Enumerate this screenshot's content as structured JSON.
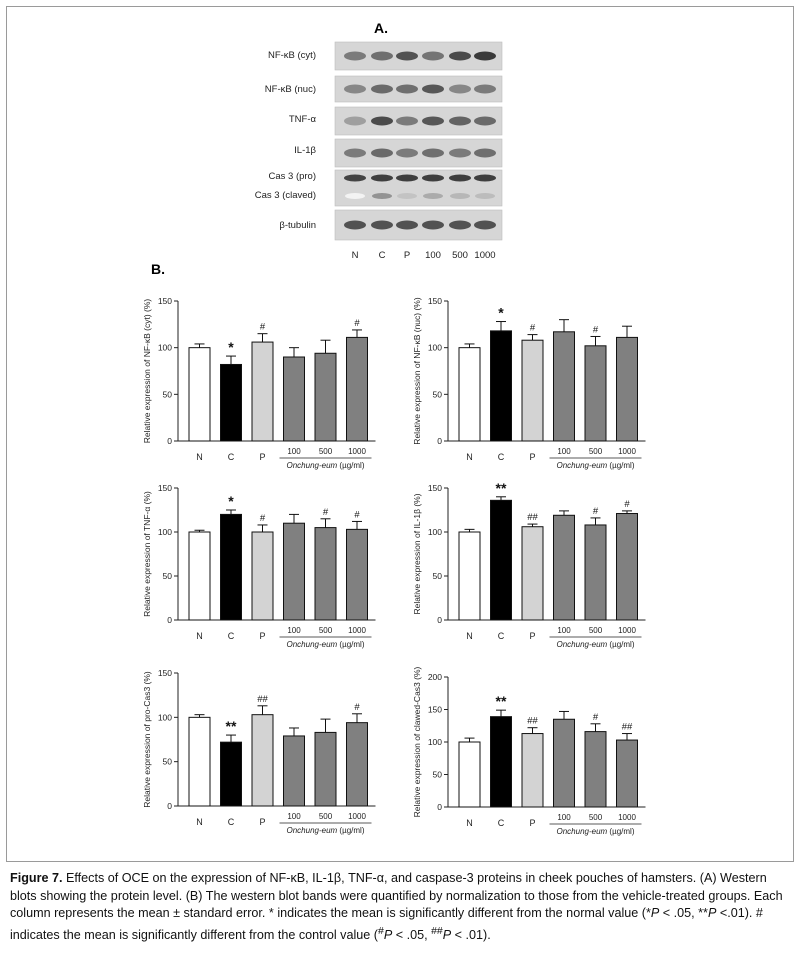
{
  "panel_a_label": "A.",
  "panel_b_label": "B.",
  "blot": {
    "rows": [
      "NF-κB (cyt)",
      "NF-κB (nuc)",
      "TNF-α",
      "IL-1β",
      "Cas 3 (pro)",
      "Cas 3 (claved)",
      "β-tubulin"
    ],
    "lanes": [
      "N",
      "C",
      "P",
      "100",
      "500",
      "1000"
    ]
  },
  "chart_data": [
    {
      "type": "bar",
      "ylabel": "Relative expression of NF-κB (cyt) (%)",
      "categories": [
        "N",
        "C",
        "P",
        "100",
        "500",
        "1000"
      ],
      "values": [
        100,
        82,
        106,
        90,
        94,
        111
      ],
      "errors": [
        4,
        9,
        9,
        10,
        14,
        8
      ],
      "annotations": [
        "",
        "*",
        "#",
        "",
        "",
        "#"
      ],
      "ylim": [
        0,
        150
      ],
      "yticks": [
        0,
        50,
        100,
        150
      ],
      "group_label": "Onchung-eum (µg/ml)",
      "group_label_italic": "Onchung-eum",
      "group_label_unit": " (µg/ml)"
    },
    {
      "type": "bar",
      "ylabel": "Relative expression of NF-κB (nuc) (%)",
      "categories": [
        "N",
        "C",
        "P",
        "100",
        "500",
        "1000"
      ],
      "values": [
        100,
        118,
        108,
        117,
        102,
        111
      ],
      "errors": [
        4,
        10,
        6,
        13,
        10,
        12
      ],
      "annotations": [
        "",
        "*",
        "#",
        "",
        "#",
        ""
      ],
      "ylim": [
        0,
        150
      ],
      "yticks": [
        0,
        50,
        100,
        150
      ],
      "group_label": "Onchung-eum (µg/ml)",
      "group_label_italic": "Onchung-eum",
      "group_label_unit": " (µg/ml)"
    },
    {
      "type": "bar",
      "ylabel": "Relative expression of TNF-α (%)",
      "categories": [
        "N",
        "C",
        "P",
        "100",
        "500",
        "1000"
      ],
      "values": [
        100,
        120,
        100,
        110,
        105,
        103
      ],
      "errors": [
        2,
        5,
        8,
        10,
        10,
        9
      ],
      "annotations": [
        "",
        "*",
        "#",
        "",
        "#",
        "#"
      ],
      "ylim": [
        0,
        150
      ],
      "yticks": [
        0,
        50,
        100,
        150
      ],
      "group_label": "Onchung-eum (µg/ml)",
      "group_label_italic": "Onchung-eum",
      "group_label_unit": " (µg/ml)"
    },
    {
      "type": "bar",
      "ylabel": "Relative expression of IL-1β (%)",
      "categories": [
        "N",
        "C",
        "P",
        "100",
        "500",
        "1000"
      ],
      "values": [
        100,
        136,
        106,
        119,
        108,
        121
      ],
      "errors": [
        3,
        4,
        3,
        5,
        8,
        3
      ],
      "annotations": [
        "",
        "**",
        "##",
        "",
        "#",
        "#"
      ],
      "ylim": [
        0,
        150
      ],
      "yticks": [
        0,
        50,
        100,
        150
      ],
      "group_label": "Onchung-eum (µg/ml)",
      "group_label_italic": "Onchung-eum",
      "group_label_unit": " (µg/ml)"
    },
    {
      "type": "bar",
      "ylabel": "Relative expression of pro-Cas3 (%)",
      "categories": [
        "N",
        "C",
        "P",
        "100",
        "500",
        "1000"
      ],
      "values": [
        100,
        72,
        103,
        79,
        83,
        94
      ],
      "errors": [
        3,
        8,
        10,
        9,
        15,
        10
      ],
      "annotations": [
        "",
        "**",
        "##",
        "",
        "",
        "#"
      ],
      "ylim": [
        0,
        150
      ],
      "yticks": [
        0,
        50,
        100,
        150
      ],
      "group_label": "Onchung-eum (µg/ml)",
      "group_label_italic": "Onchung-eum",
      "group_label_unit": " (µg/ml)"
    },
    {
      "type": "bar",
      "ylabel": "Relative expression of clawed-Cas3 (%)",
      "categories": [
        "N",
        "C",
        "P",
        "100",
        "500",
        "1000"
      ],
      "values": [
        100,
        139,
        113,
        135,
        116,
        103
      ],
      "errors": [
        6,
        10,
        9,
        12,
        12,
        10
      ],
      "annotations": [
        "",
        "**",
        "##",
        "",
        "#",
        "##"
      ],
      "ylim": [
        0,
        200
      ],
      "yticks": [
        0,
        50,
        100,
        150,
        200
      ],
      "group_label": "Onchung-eum (µg/ml)",
      "group_label_italic": "Onchung-eum",
      "group_label_unit": " (µg/ml)"
    }
  ],
  "bar_colors": [
    "#ffffff",
    "#000000",
    "#d3d3d3",
    "#808080",
    "#808080",
    "#808080"
  ],
  "caption": {
    "figure_label": "Figure 7.",
    "text_1": "  Effects of OCE on the expression of NF-κB, IL-1β, TNF-α, and caspase-3 proteins in cheek pouches of hamsters. (A) Western blots showing the protein level. (B) The western blot bands were quantified by normalization to those from the vehicle-treated groups. Each column represents the mean ± standard error. * indicates the mean is significantly different from the normal value (*",
    "p1": "P",
    "text_2": " < .05, **",
    "p2": "P",
    "text_3": " <.01). # indicates the mean is significantly different from the control value (",
    "sup1": "#",
    "p3": "P",
    "text_4": " < .05, ",
    "sup2": "##",
    "p4": "P",
    "text_5": " < .01)."
  }
}
